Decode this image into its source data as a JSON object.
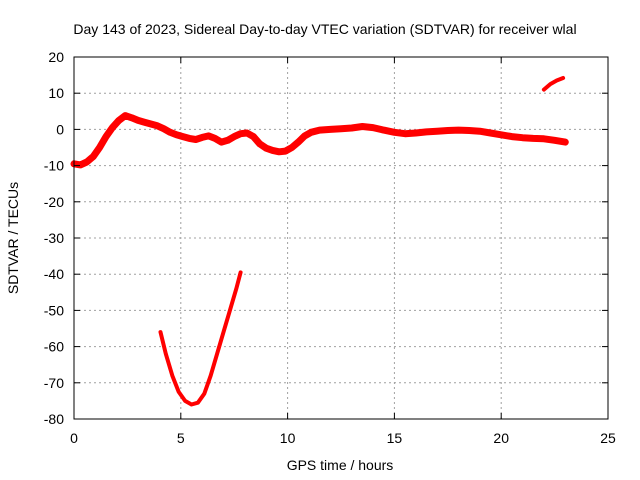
{
  "chart_data": {
    "type": "line",
    "title": "Day 143 of 2023, Sidereal Day-to-day VTEC variation (SDTVAR) for receiver wlal",
    "xlabel": "GPS time / hours",
    "ylabel": "SDTVAR / TECUs",
    "xlim": [
      0,
      25
    ],
    "ylim": [
      -80,
      20
    ],
    "xticks": [
      0,
      5,
      10,
      15,
      20,
      25
    ],
    "yticks": [
      -80,
      -70,
      -60,
      -50,
      -40,
      -30,
      -20,
      -10,
      0,
      10,
      20
    ],
    "grid": true,
    "colors": {
      "series": "#ff0000"
    },
    "series": [
      {
        "name": "main",
        "x": [
          0.0,
          0.3,
          0.6,
          0.9,
          1.2,
          1.5,
          1.8,
          2.1,
          2.4,
          2.7,
          3.0,
          3.3,
          3.6,
          3.9,
          4.2,
          4.5,
          4.8,
          5.1,
          5.4,
          5.7,
          6.0,
          6.3,
          6.6,
          6.9,
          7.2,
          7.5,
          7.8,
          8.1,
          8.4,
          8.7,
          9.0,
          9.3,
          9.6,
          9.9,
          10.2,
          10.5,
          10.8,
          11.1,
          11.5,
          12.0,
          12.5,
          13.0,
          13.5,
          14.0,
          14.5,
          15.0,
          15.5,
          16.0,
          16.5,
          17.0,
          17.5,
          18.0,
          18.5,
          19.0,
          19.5,
          20.0,
          20.5,
          21.0,
          21.5,
          22.0,
          22.5,
          23.0
        ],
        "y": [
          -9.5,
          -9.8,
          -9.0,
          -7.5,
          -5.0,
          -2.0,
          0.5,
          2.5,
          3.8,
          3.2,
          2.5,
          2.0,
          1.5,
          1.0,
          0.2,
          -0.8,
          -1.5,
          -2.0,
          -2.5,
          -2.8,
          -2.2,
          -1.8,
          -2.5,
          -3.5,
          -3.0,
          -2.0,
          -1.2,
          -1.0,
          -2.0,
          -4.0,
          -5.2,
          -5.8,
          -6.2,
          -6.0,
          -5.0,
          -3.5,
          -1.8,
          -0.8,
          -0.2,
          0.0,
          0.2,
          0.4,
          0.8,
          0.5,
          -0.2,
          -0.8,
          -1.2,
          -1.0,
          -0.7,
          -0.5,
          -0.3,
          -0.2,
          -0.3,
          -0.5,
          -1.0,
          -1.5,
          -2.0,
          -2.3,
          -2.5,
          -2.6,
          -3.0,
          -3.5
        ],
        "line_width": 7
      },
      {
        "name": "dip",
        "x": [
          4.05,
          4.3,
          4.6,
          4.9,
          5.2,
          5.5,
          5.8,
          6.1,
          6.4,
          6.7,
          7.0,
          7.3,
          7.6,
          7.8
        ],
        "y": [
          -56.0,
          -62.0,
          -68.0,
          -72.5,
          -75.0,
          -76.0,
          -75.5,
          -73.0,
          -68.0,
          -62.0,
          -56.0,
          -50.0,
          -44.0,
          -39.5
        ],
        "line_width": 4
      },
      {
        "name": "tail",
        "x": [
          22.0,
          22.3,
          22.6,
          22.9
        ],
        "y": [
          11.0,
          12.5,
          13.5,
          14.2
        ],
        "line_width": 4
      }
    ]
  }
}
